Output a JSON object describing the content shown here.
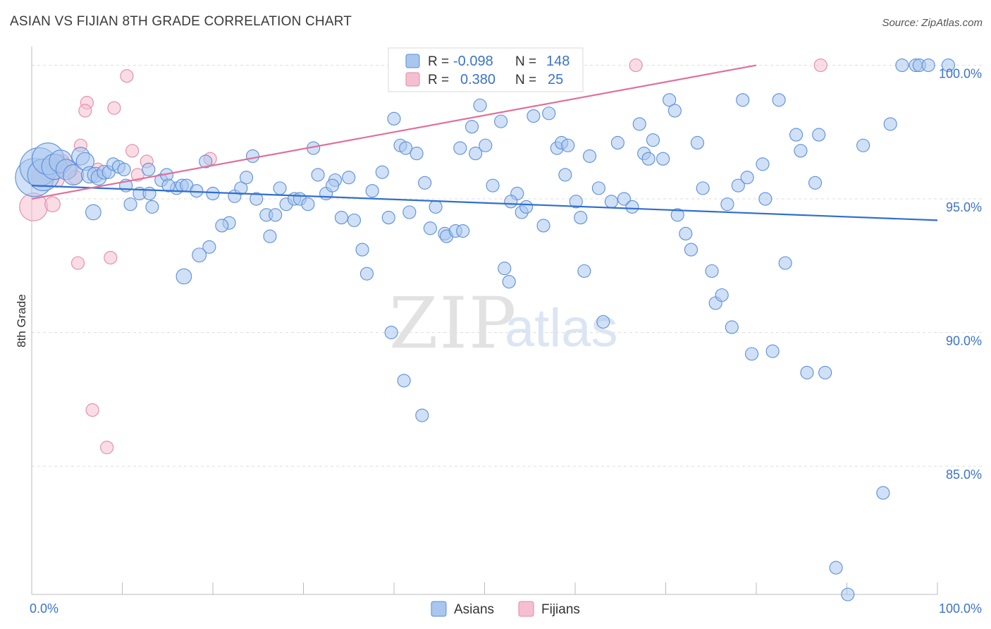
{
  "title": "ASIAN VS FIJIAN 8TH GRADE CORRELATION CHART",
  "source": "Source: ZipAtlas.com",
  "watermark": {
    "zip": "ZIP",
    "atlas": "atlas"
  },
  "colors": {
    "asian_fill": "#a9c6ee",
    "asian_stroke": "#5b8fd8",
    "asian_line": "#2f6fd0",
    "fijian_fill": "#f6bfd0",
    "fijian_stroke": "#e28aa8",
    "fijian_line": "#e0709a",
    "tick_text": "#3b73c9",
    "grid": "#dddddd"
  },
  "legend_top": {
    "rows": [
      {
        "r_label": "R =",
        "r_value": "-0.098",
        "n_label": "N =",
        "n_value": "148"
      },
      {
        "r_label": "R =",
        "r_value": "0.380",
        "n_label": "N =",
        "n_value": "25"
      }
    ]
  },
  "legend_bottom": [
    "Asians",
    "Fijians"
  ],
  "chart_data": {
    "type": "scatter",
    "title": "ASIAN VS FIJIAN 8TH GRADE CORRELATION CHART",
    "xlabel": "",
    "ylabel": "8th Grade",
    "xlim": [
      0,
      100
    ],
    "ylim": [
      80.2,
      100.7
    ],
    "x_tick_labels": [
      "0.0%",
      "100.0%"
    ],
    "y_ticks": [
      85,
      90,
      95,
      100
    ],
    "y_tick_labels": [
      "85.0%",
      "90.0%",
      "95.0%",
      "100.0%"
    ],
    "grid": "horizontal dashed",
    "legend_placement": "top-center and bottom-center",
    "series": [
      {
        "name": "Asians",
        "r": -0.098,
        "n": 148,
        "trend": [
          [
            0,
            95.5
          ],
          [
            100,
            94.2
          ]
        ],
        "points": [
          [
            0.3,
            95.8,
            3
          ],
          [
            0.8,
            96.2,
            3
          ],
          [
            1.3,
            95.9,
            2.5
          ],
          [
            1.8,
            96.5,
            2.5
          ],
          [
            2.5,
            96.2,
            2
          ],
          [
            3.2,
            96.4,
            1.8
          ],
          [
            3.8,
            96.1,
            1.6
          ],
          [
            4.6,
            95.9,
            1.6
          ],
          [
            5.4,
            96.6,
            1.4
          ],
          [
            5.9,
            96.4,
            1.4
          ],
          [
            6.4,
            95.9,
            1.3
          ],
          [
            7.0,
            95.9,
            1.2
          ],
          [
            7.4,
            95.8,
            1.2
          ],
          [
            8.0,
            96.0,
            1.1
          ],
          [
            8.5,
            96.0,
            1
          ],
          [
            9.0,
            96.3,
            1
          ],
          [
            9.6,
            96.2,
            1
          ],
          [
            10.2,
            96.1,
            1
          ],
          [
            6.8,
            94.5,
            1.2
          ],
          [
            10.9,
            94.8,
            1
          ],
          [
            11.9,
            95.2,
            1
          ],
          [
            12.9,
            96.1,
            1
          ],
          [
            13.3,
            94.7,
            1
          ],
          [
            14.3,
            95.7,
            1
          ],
          [
            14.9,
            95.9,
            1
          ],
          [
            16.0,
            95.4,
            1
          ],
          [
            16.6,
            95.5,
            1
          ],
          [
            17.1,
            95.5,
            1
          ],
          [
            18.2,
            95.3,
            1
          ],
          [
            19.2,
            96.4,
            1
          ],
          [
            20.0,
            95.2,
            1
          ],
          [
            19.6,
            93.2,
            1
          ],
          [
            21.8,
            94.1,
            1
          ],
          [
            22.4,
            95.1,
            1
          ],
          [
            23.1,
            95.4,
            1
          ],
          [
            24.4,
            96.6,
            1
          ],
          [
            24.8,
            95.0,
            1
          ],
          [
            25.9,
            94.4,
            1
          ],
          [
            26.3,
            93.6,
            1
          ],
          [
            27.4,
            95.4,
            1
          ],
          [
            28.1,
            94.8,
            1
          ],
          [
            29.0,
            95.0,
            1
          ],
          [
            29.6,
            95.0,
            1
          ],
          [
            31.1,
            96.9,
            1
          ],
          [
            31.6,
            95.9,
            1
          ],
          [
            32.5,
            95.2,
            1
          ],
          [
            33.5,
            95.7,
            1
          ],
          [
            34.2,
            94.3,
            1
          ],
          [
            35.6,
            94.2,
            1
          ],
          [
            36.5,
            93.1,
            1
          ],
          [
            37.0,
            92.2,
            1
          ],
          [
            37.6,
            95.3,
            1
          ],
          [
            38.7,
            96.0,
            1
          ],
          [
            39.4,
            94.3,
            1
          ],
          [
            40.0,
            98.0,
            1
          ],
          [
            40.7,
            97.0,
            1
          ],
          [
            41.3,
            96.9,
            1
          ],
          [
            41.7,
            94.5,
            1
          ],
          [
            42.5,
            96.7,
            1
          ],
          [
            43.4,
            95.6,
            1
          ],
          [
            44.6,
            94.7,
            1
          ],
          [
            45.6,
            93.7,
            1
          ],
          [
            45.8,
            93.6,
            1
          ],
          [
            46.8,
            93.8,
            1
          ],
          [
            47.6,
            93.8,
            1
          ],
          [
            47.3,
            96.9,
            1
          ],
          [
            48.6,
            97.7,
            1
          ],
          [
            49.0,
            96.7,
            1
          ],
          [
            49.5,
            98.5,
            1
          ],
          [
            50.1,
            97.0,
            1
          ],
          [
            50.9,
            95.5,
            1
          ],
          [
            51.8,
            97.9,
            1
          ],
          [
            52.2,
            92.4,
            1
          ],
          [
            52.7,
            91.9,
            1
          ],
          [
            53.6,
            95.2,
            1
          ],
          [
            54.1,
            94.5,
            1
          ],
          [
            54.6,
            94.7,
            1
          ],
          [
            55.4,
            98.1,
            1
          ],
          [
            56.5,
            94.0,
            1
          ],
          [
            57.1,
            98.2,
            1
          ],
          [
            58.0,
            96.9,
            1
          ],
          [
            58.5,
            97.1,
            1
          ],
          [
            59.2,
            97.0,
            1
          ],
          [
            60.1,
            94.9,
            1
          ],
          [
            60.6,
            94.3,
            1
          ],
          [
            61.0,
            92.3,
            1
          ],
          [
            61.6,
            96.6,
            1
          ],
          [
            62.6,
            95.4,
            1
          ],
          [
            63.1,
            90.4,
            1
          ],
          [
            64.0,
            94.9,
            1
          ],
          [
            64.7,
            97.1,
            1
          ],
          [
            65.4,
            95.0,
            1
          ],
          [
            66.3,
            94.7,
            1
          ],
          [
            67.1,
            97.8,
            1
          ],
          [
            67.6,
            96.7,
            1
          ],
          [
            68.1,
            96.5,
            1
          ],
          [
            68.6,
            97.2,
            1
          ],
          [
            69.7,
            96.5,
            1
          ],
          [
            70.4,
            98.7,
            1
          ],
          [
            71.0,
            98.3,
            1
          ],
          [
            71.3,
            94.4,
            1
          ],
          [
            72.2,
            93.7,
            1
          ],
          [
            72.8,
            93.1,
            1
          ],
          [
            73.5,
            97.1,
            1
          ],
          [
            74.1,
            95.4,
            1
          ],
          [
            75.1,
            92.3,
            1
          ],
          [
            75.5,
            91.1,
            1
          ],
          [
            76.2,
            91.4,
            1
          ],
          [
            76.8,
            94.8,
            1
          ],
          [
            77.3,
            90.2,
            1
          ],
          [
            78.0,
            95.5,
            1
          ],
          [
            78.5,
            98.7,
            1
          ],
          [
            79.0,
            95.8,
            1
          ],
          [
            79.5,
            89.2,
            1
          ],
          [
            80.7,
            96.3,
            1
          ],
          [
            81.0,
            95.0,
            1
          ],
          [
            81.8,
            89.3,
            1
          ],
          [
            82.5,
            98.7,
            1
          ],
          [
            83.2,
            92.6,
            1
          ],
          [
            84.4,
            97.4,
            1
          ],
          [
            84.9,
            96.8,
            1
          ],
          [
            85.6,
            88.5,
            1
          ],
          [
            86.5,
            95.6,
            1
          ],
          [
            86.9,
            97.4,
            1
          ],
          [
            87.6,
            88.5,
            1
          ],
          [
            91.8,
            97.0,
            1
          ],
          [
            94.8,
            97.8,
            1
          ],
          [
            96.1,
            100.0,
            1
          ],
          [
            97.6,
            100.0,
            1
          ],
          [
            98.0,
            100.0,
            1
          ],
          [
            99.0,
            100.0,
            1
          ],
          [
            101.2,
            100.0,
            1
          ],
          [
            94.0,
            84.0,
            1
          ],
          [
            88.8,
            81.2,
            1
          ],
          [
            90.1,
            80.2,
            1
          ],
          [
            39.7,
            90.0,
            1
          ],
          [
            41.1,
            88.2,
            1
          ],
          [
            43.1,
            86.9,
            1
          ],
          [
            16.8,
            92.1,
            1.2
          ],
          [
            18.5,
            92.9,
            1.1
          ],
          [
            10.4,
            95.5,
            1
          ],
          [
            13.0,
            95.2,
            1
          ],
          [
            15.1,
            95.5,
            1
          ],
          [
            21.0,
            94.0,
            1
          ],
          [
            23.7,
            95.8,
            1
          ],
          [
            26.9,
            94.4,
            1
          ],
          [
            30.5,
            94.8,
            1
          ],
          [
            33.2,
            95.5,
            1
          ],
          [
            35.0,
            95.8,
            1
          ],
          [
            44.0,
            93.9,
            1
          ],
          [
            52.9,
            94.9,
            1
          ],
          [
            58.9,
            95.9,
            1
          ]
        ]
      },
      {
        "name": "Fijians",
        "r": 0.38,
        "n": 25,
        "trend": [
          [
            0,
            95.0
          ],
          [
            80,
            100.0
          ]
        ],
        "points": [
          [
            0.2,
            94.7,
            2.2
          ],
          [
            1.0,
            95.8,
            1.5
          ],
          [
            2.0,
            96.1,
            1.8
          ],
          [
            2.3,
            94.8,
            1.2
          ],
          [
            3.5,
            96.3,
            1.1
          ],
          [
            4.2,
            96.1,
            1.3
          ],
          [
            4.8,
            95.8,
            1.1
          ],
          [
            5.4,
            97.0,
            1
          ],
          [
            6.1,
            98.6,
            1
          ],
          [
            5.9,
            98.3,
            1
          ],
          [
            9.1,
            98.4,
            1
          ],
          [
            10.5,
            99.6,
            1
          ],
          [
            11.1,
            96.8,
            1
          ],
          [
            11.7,
            95.9,
            1
          ],
          [
            12.7,
            96.4,
            1
          ],
          [
            19.7,
            96.5,
            1
          ],
          [
            8.7,
            92.8,
            1
          ],
          [
            5.1,
            92.6,
            1
          ],
          [
            6.7,
            87.1,
            1
          ],
          [
            8.3,
            85.7,
            1
          ],
          [
            3.4,
            96.4,
            1.1
          ],
          [
            2.8,
            95.7,
            1.1
          ],
          [
            66.7,
            100.0,
            1
          ],
          [
            87.1,
            100.0,
            1
          ],
          [
            7.3,
            96.1,
            1
          ]
        ]
      }
    ]
  }
}
